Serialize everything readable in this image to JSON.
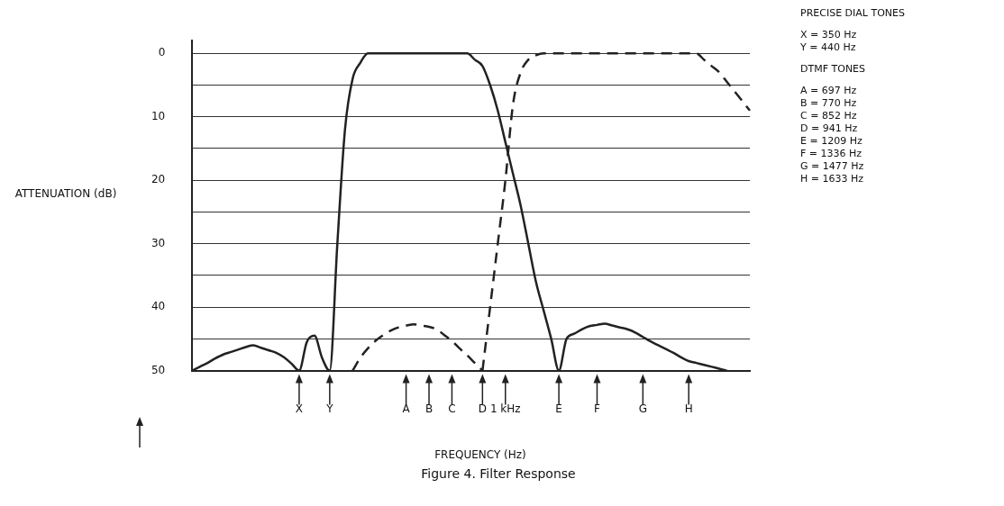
{
  "chart_data": {
    "type": "line",
    "title": "Figure 4. Filter Response",
    "xlabel": "FREQUENCY (Hz)",
    "ylabel": "ATTENUATION (dB)",
    "categories": [
      null,
      null,
      null,
      null,
      null,
      null,
      null,
      null,
      null,
      null,
      null,
      null,
      null,
      null,
      "X",
      null,
      null,
      null,
      "Y",
      null,
      null,
      null,
      null,
      null,
      null,
      null,
      null,
      null,
      "A",
      null,
      null,
      "B",
      null,
      null,
      "C",
      null,
      null,
      null,
      "D",
      null,
      null,
      "1 kHz",
      null,
      null,
      null,
      null,
      null,
      null,
      "E",
      null,
      null,
      null,
      null,
      "F",
      null,
      null,
      null,
      null,
      null,
      "G",
      null,
      null,
      null,
      null,
      null,
      "H",
      null,
      null,
      null,
      null,
      null,
      null,
      null,
      null
    ],
    "ylim": [
      50,
      -2
    ],
    "yticks": [
      0,
      {
        "value": 5,
        "label": null
      },
      10,
      {
        "value": 15,
        "label": null
      },
      20,
      {
        "value": 25,
        "label": null
      },
      30,
      {
        "value": 35,
        "label": null
      },
      40,
      {
        "value": 45,
        "label": null
      },
      50
    ],
    "grid": "y",
    "legend": false,
    "marker": "none",
    "series": [
      {
        "color": "#222222",
        "line_style": "solid",
        "values": [
          50,
          49.4,
          48.8,
          48.1,
          47.5,
          47.1,
          46.7,
          46.3,
          46,
          46.4,
          46.8,
          47.2,
          47.9,
          48.9,
          50,
          45.5,
          44.5,
          48,
          50,
          30,
          12,
          4,
          1.5,
          0,
          0,
          0,
          0,
          0,
          0,
          0,
          0,
          0,
          0,
          0,
          0,
          0,
          0,
          1,
          2,
          5,
          9,
          14,
          19,
          24,
          30,
          36,
          40.5,
          45,
          50,
          45,
          44.2,
          43.5,
          43,
          42.8,
          42.6,
          42.9,
          43.2,
          43.5,
          44,
          44.7,
          45.4,
          46,
          46.6,
          47.2,
          47.9,
          48.5,
          48.8,
          49.1,
          49.4,
          49.7,
          50,
          null,
          null,
          null
        ]
      },
      {
        "color": "#222222",
        "line_style": "dashed",
        "values": [
          null,
          null,
          null,
          null,
          null,
          null,
          null,
          null,
          null,
          null,
          null,
          null,
          null,
          null,
          null,
          null,
          null,
          null,
          null,
          null,
          null,
          50,
          48,
          46.5,
          45.3,
          44.4,
          43.7,
          43.2,
          42.9,
          42.7,
          42.9,
          43.1,
          43.5,
          44.4,
          45.3,
          46.5,
          47.6,
          48.8,
          50,
          null,
          null,
          null,
          null,
          null,
          null,
          null,
          null,
          null,
          null,
          null,
          null,
          null,
          null,
          null,
          null,
          null,
          null,
          null,
          null,
          null,
          null,
          null,
          null,
          null,
          null,
          null,
          null,
          null,
          null,
          null,
          null,
          null,
          null,
          null
        ]
      },
      {
        "color": "#222222",
        "line_style": "dashed",
        "values": [
          null,
          null,
          null,
          null,
          null,
          null,
          null,
          null,
          null,
          null,
          null,
          null,
          null,
          null,
          null,
          null,
          null,
          null,
          null,
          null,
          null,
          null,
          null,
          null,
          null,
          null,
          null,
          null,
          null,
          null,
          null,
          null,
          null,
          null,
          null,
          null,
          null,
          null,
          50,
          40,
          30,
          20,
          8,
          3,
          1,
          0.3,
          0,
          0,
          0,
          0,
          0,
          0,
          0,
          0,
          0,
          0,
          0,
          0,
          0,
          0,
          0,
          0,
          0,
          0,
          0,
          0,
          0,
          1,
          2,
          3,
          4.5,
          6,
          7.5,
          9
        ]
      }
    ],
    "annotations": [
      "PRECISE DIAL TONES",
      "X = 350 Hz",
      "Y = 440 Hz",
      "DTMF TONES",
      "A = 697 Hz",
      "B = 770 Hz",
      "C = 852 Hz",
      "D = 941 Hz",
      "E = 1209 Hz",
      "F = 1336 Hz",
      "G = 1477 Hz",
      "H = 1633 Hz"
    ]
  }
}
